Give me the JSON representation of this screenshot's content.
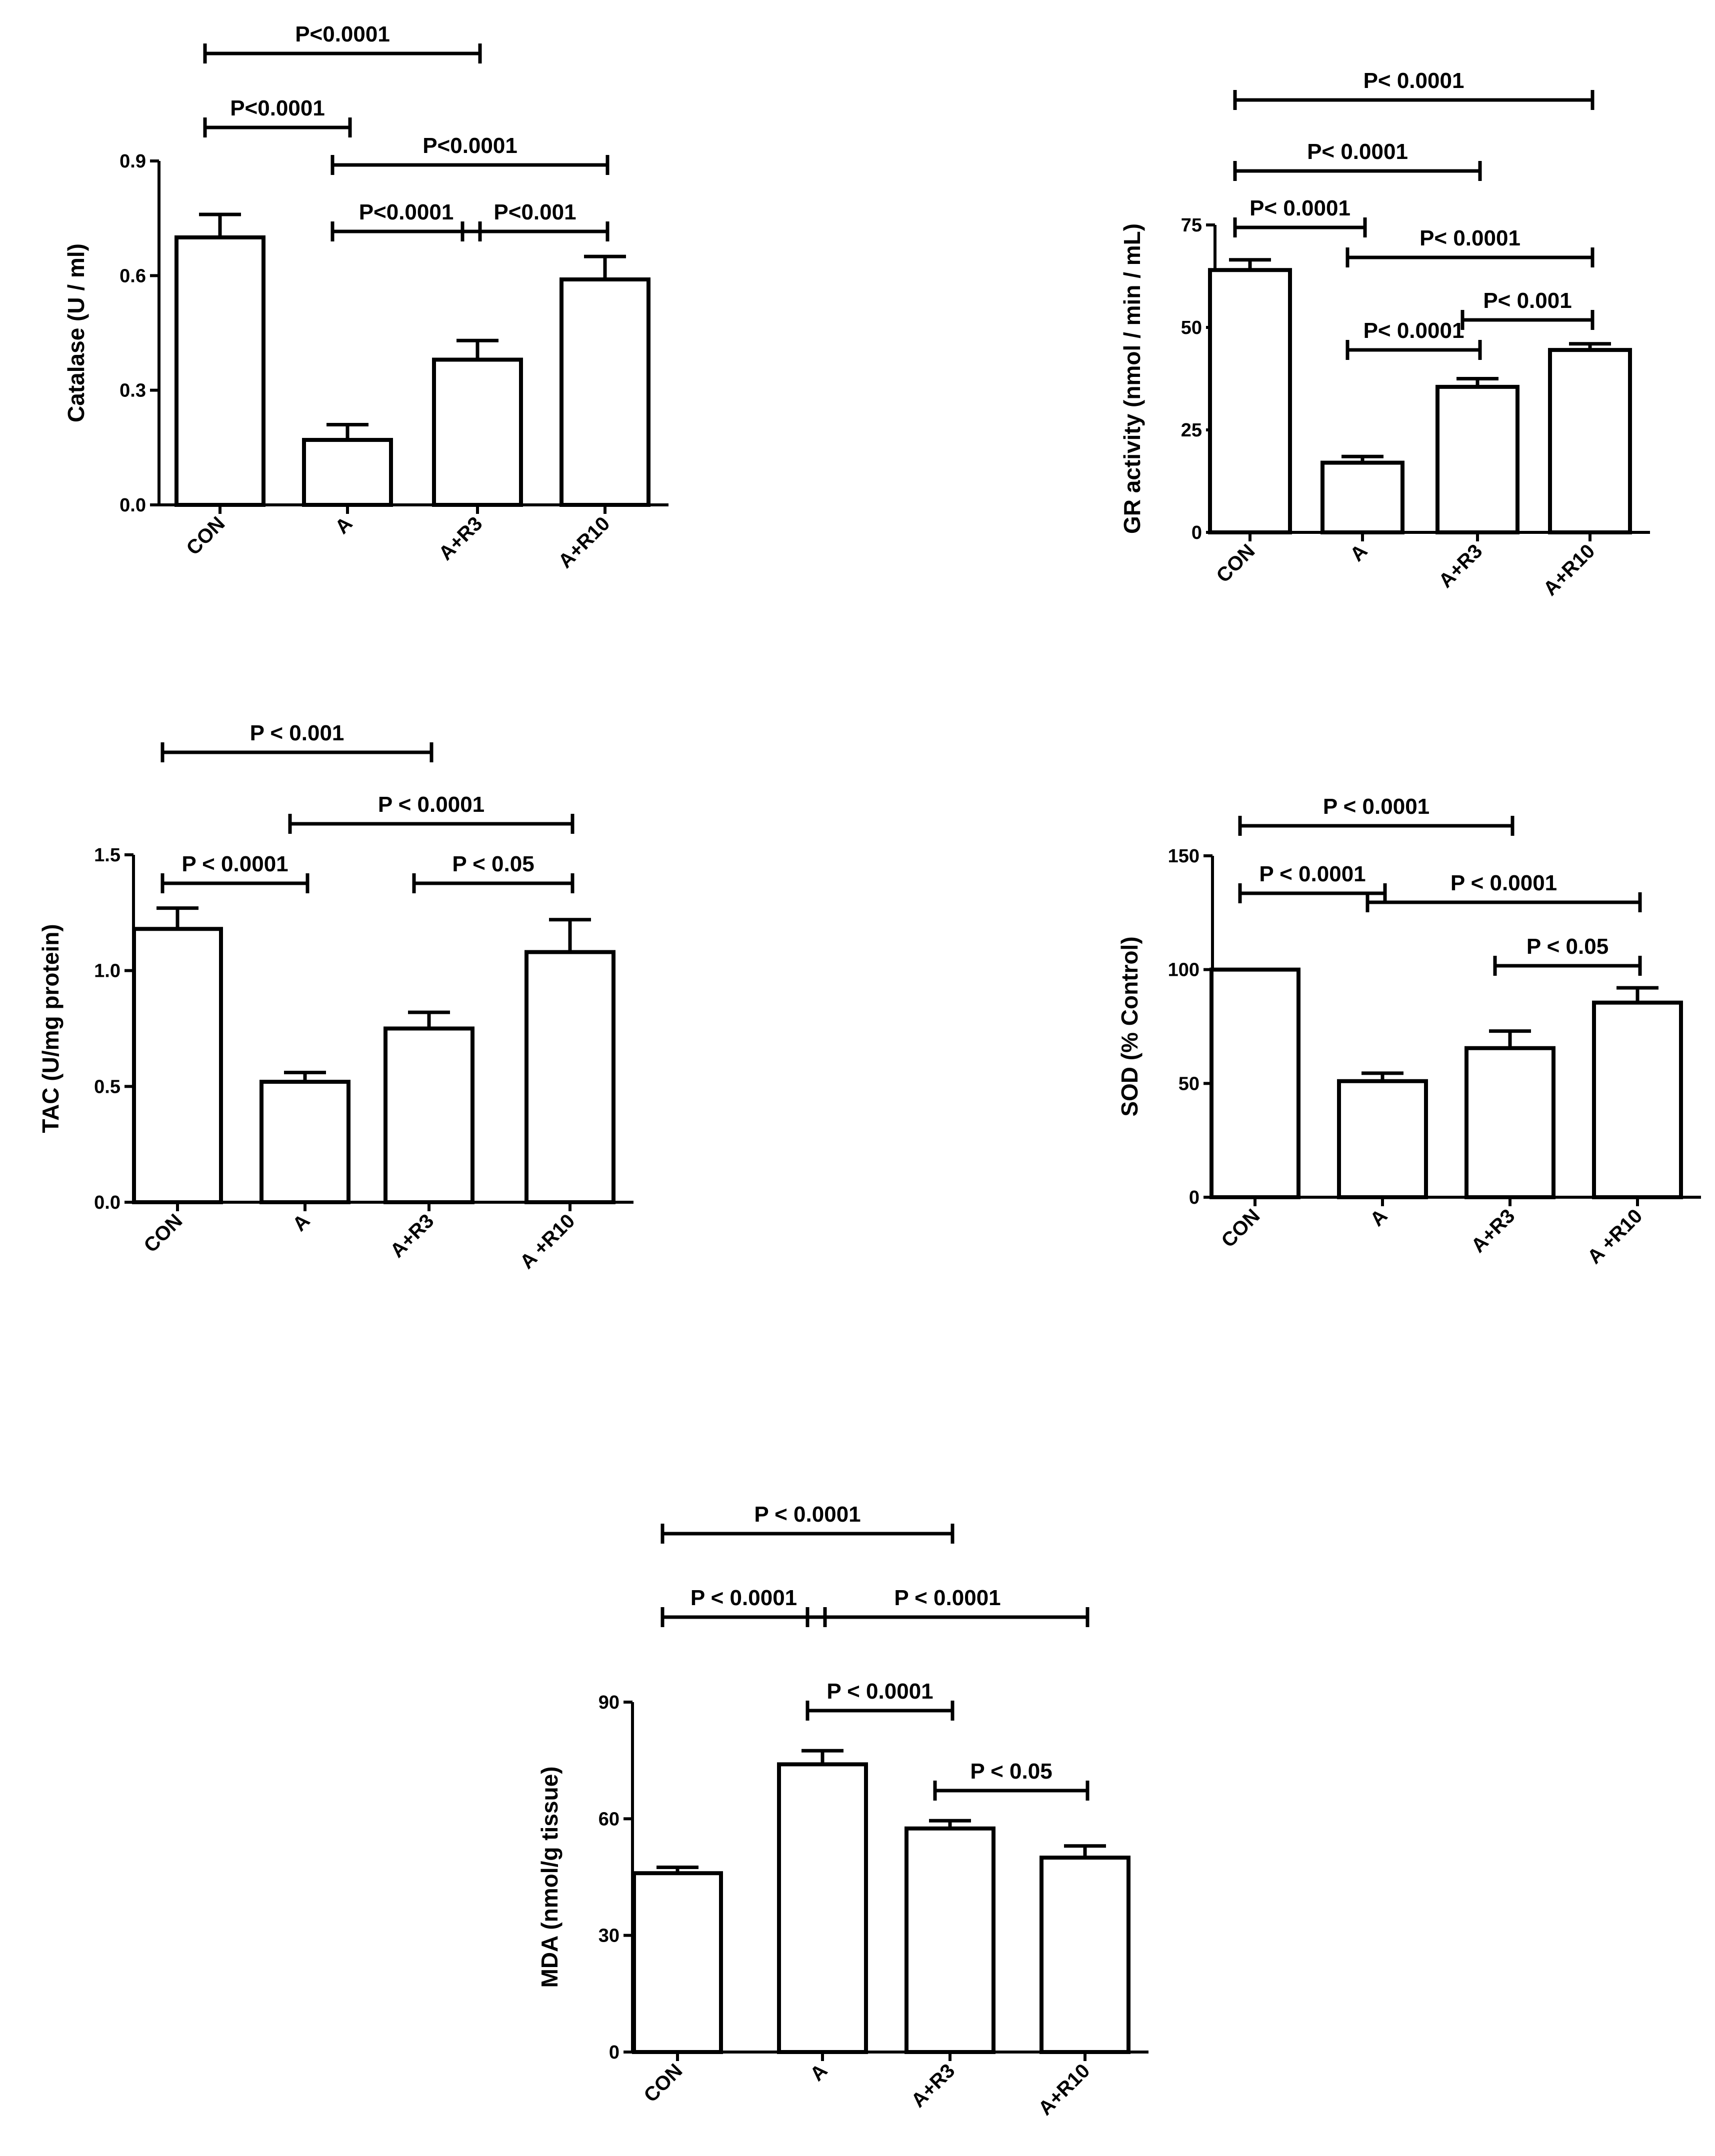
{
  "chart_data": [
    {
      "type": "bar",
      "id": "catalase",
      "ylabel": "Catalase (U / ml)",
      "categories": [
        "CON",
        "A",
        "A+R3",
        "A+R10"
      ],
      "values": [
        0.7,
        0.17,
        0.38,
        0.59
      ],
      "errors": [
        0.06,
        0.04,
        0.05,
        0.06
      ],
      "ylim": [
        0,
        0.9
      ],
      "yticks": [
        0,
        0.3,
        0.6,
        0.9
      ],
      "ytick_labels": [
        "0.0",
        "0.3",
        "0.6",
        "0.9"
      ],
      "comparisons": [
        {
          "from": 0,
          "to": 2,
          "label": "P<0.0001"
        },
        {
          "from": 0,
          "to": 1,
          "label": "P<0.0001"
        },
        {
          "from": 1,
          "to": 3,
          "label": "P<0.0001"
        },
        {
          "from": 1,
          "to": 2,
          "label": "P<0.0001"
        },
        {
          "from": 2,
          "to": 3,
          "label": "P<0.001"
        }
      ]
    },
    {
      "type": "bar",
      "id": "gr",
      "ylabel": "GR activity (nmol / min / mL)",
      "categories": [
        "CON",
        "A",
        "A+R3",
        "A+R10"
      ],
      "values": [
        64,
        17,
        35.5,
        44.5
      ],
      "errors": [
        2.5,
        1.5,
        2,
        1.5
      ],
      "ylim": [
        0,
        75
      ],
      "yticks": [
        0,
        25,
        50,
        75
      ],
      "ytick_labels": [
        "0",
        "25",
        "50",
        "75"
      ],
      "comparisons": [
        {
          "from": 0,
          "to": 3,
          "label": "P< 0.0001"
        },
        {
          "from": 0,
          "to": 2,
          "label": "P< 0.0001"
        },
        {
          "from": 0,
          "to": 1,
          "label": "P< 0.0001"
        },
        {
          "from": 1,
          "to": 3,
          "label": "P< 0.0001"
        },
        {
          "from": 2,
          "to": 3,
          "label": "P< 0.001"
        },
        {
          "from": 1,
          "to": 2,
          "label": "P< 0.0001"
        }
      ]
    },
    {
      "type": "bar",
      "id": "tac",
      "ylabel": "TAC (U/mg protein)",
      "categories": [
        "CON",
        "A",
        "A+R3",
        "A +R10"
      ],
      "values": [
        1.18,
        0.52,
        0.75,
        1.08
      ],
      "errors": [
        0.09,
        0.04,
        0.07,
        0.14
      ],
      "ylim": [
        0,
        1.5
      ],
      "yticks": [
        0,
        0.5,
        1.0,
        1.5
      ],
      "ytick_labels": [
        "0.0",
        "0.5",
        "1.0",
        "1.5"
      ],
      "comparisons": [
        {
          "from": 0,
          "to": 2,
          "label": "P < 0.001"
        },
        {
          "from": 1,
          "to": 3,
          "label": "P < 0.0001"
        },
        {
          "from": 0,
          "to": 1,
          "label": "P < 0.0001"
        },
        {
          "from": 2,
          "to": 3,
          "label": "P < 0.05"
        }
      ]
    },
    {
      "type": "bar",
      "id": "sod",
      "ylabel": "SOD (% Control)",
      "categories": [
        "CON",
        "A",
        "A+R3",
        "A +R10"
      ],
      "values": [
        100,
        51,
        65.5,
        85.5
      ],
      "errors": [
        0,
        3.5,
        7.5,
        6.5
      ],
      "ylim": [
        0,
        150
      ],
      "yticks": [
        0,
        50,
        100,
        150
      ],
      "ytick_labels": [
        "0",
        "50",
        "100",
        "150"
      ],
      "comparisons": [
        {
          "from": 0,
          "to": 2,
          "label": "P < 0.0001"
        },
        {
          "from": 0,
          "to": 1,
          "label": "P < 0.0001"
        },
        {
          "from": 1,
          "to": 3,
          "label": "P < 0.0001"
        },
        {
          "from": 2,
          "to": 3,
          "label": "P < 0.05"
        }
      ]
    },
    {
      "type": "bar",
      "id": "mda",
      "ylabel": "MDA (nmol/g tissue)",
      "categories": [
        "CON",
        "A",
        "A+R3",
        "A+R10"
      ],
      "values": [
        46,
        74,
        57.5,
        50
      ],
      "errors": [
        1.5,
        3.5,
        2,
        3
      ],
      "ylim": [
        0,
        90
      ],
      "yticks": [
        0,
        30,
        60,
        90
      ],
      "ytick_labels": [
        "0",
        "30",
        "60",
        "90"
      ],
      "comparisons": [
        {
          "from": 0,
          "to": 2,
          "label": "P < 0.0001"
        },
        {
          "from": 0,
          "to": 1,
          "label": "P < 0.0001"
        },
        {
          "from": 1,
          "to": 3,
          "label": "P < 0.0001"
        },
        {
          "from": 1,
          "to": 2,
          "label": "P < 0.0001"
        },
        {
          "from": 2,
          "to": 3,
          "label": "P < 0.05"
        }
      ]
    }
  ]
}
